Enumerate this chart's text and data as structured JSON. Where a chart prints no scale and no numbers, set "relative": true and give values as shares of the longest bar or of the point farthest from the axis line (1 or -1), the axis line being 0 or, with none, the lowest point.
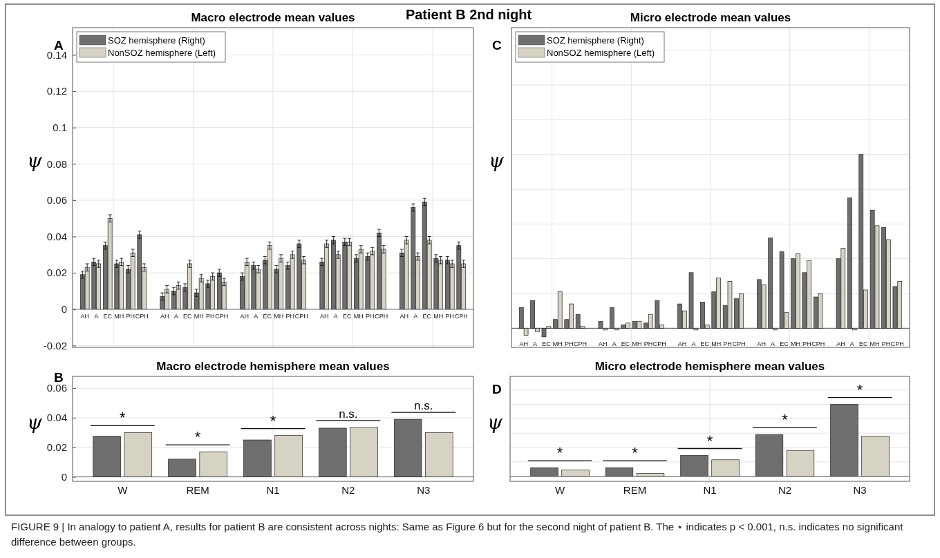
{
  "chart_data": [
    {
      "type": "bar",
      "title": "Macro electrode mean values",
      "subtitle": "Patient B 2nd night",
      "ylabel": "ψ",
      "categories": [
        "AH",
        "A",
        "EC",
        "MH",
        "PH",
        "CPH",
        null,
        "AH",
        "A",
        "EC",
        "MH",
        "PH",
        "CPH",
        null,
        "AH",
        "A",
        "EC",
        "MH",
        "PH",
        "CPH",
        null,
        "AH",
        "A",
        "EC",
        "MH",
        "PH",
        "CPH",
        null,
        "AH",
        "A",
        "EC",
        "MH",
        "PH",
        "CPH"
      ],
      "series": [
        {
          "name": "SOZ hemisphere (Right)",
          "color": "#6e6e6e",
          "values": [
            0.019,
            0.026,
            0.035,
            0.025,
            0.022,
            0.041,
            null,
            0.007,
            0.01,
            0.012,
            0.009,
            0.014,
            0.02,
            null,
            0.018,
            0.024,
            0.027,
            0.022,
            0.024,
            0.036,
            null,
            0.026,
            0.038,
            0.037,
            0.028,
            0.029,
            0.042,
            null,
            0.031,
            0.056,
            0.059,
            0.028,
            0.027,
            0.035
          ],
          "errors": [
            0.002,
            0.002,
            0.002,
            0.002,
            0.002,
            0.002,
            null,
            0.002,
            0.002,
            0.002,
            0.002,
            0.002,
            0.002,
            null,
            0.002,
            0.002,
            0.002,
            0.002,
            0.002,
            0.002,
            null,
            0.002,
            0.002,
            0.002,
            0.002,
            0.002,
            0.002,
            null,
            0.002,
            0.002,
            0.002,
            0.002,
            0.002,
            0.002
          ]
        },
        {
          "name": "NonSOZ hemisphere (Left)",
          "color": "#d6d3c4",
          "values": [
            0.023,
            0.025,
            0.05,
            0.026,
            0.031,
            0.023,
            null,
            0.011,
            0.013,
            0.025,
            0.017,
            0.018,
            0.015,
            null,
            0.026,
            0.022,
            0.035,
            0.028,
            0.03,
            0.027,
            null,
            0.036,
            0.03,
            0.037,
            0.033,
            0.032,
            0.033,
            null,
            0.038,
            0.029,
            0.038,
            0.027,
            0.025,
            0.025
          ],
          "errors": [
            0.002,
            0.002,
            0.002,
            0.002,
            0.002,
            0.002,
            null,
            0.002,
            0.002,
            0.002,
            0.002,
            0.002,
            0.002,
            null,
            0.002,
            0.002,
            0.002,
            0.002,
            0.002,
            0.002,
            null,
            0.002,
            0.002,
            0.002,
            0.002,
            0.002,
            0.002,
            null,
            0.002,
            0.002,
            0.002,
            0.002,
            0.002,
            0.002
          ]
        }
      ],
      "ylim": [
        -0.021,
        0.155
      ],
      "yticks": [
        -0.02,
        0,
        0.02,
        0.04,
        0.06,
        0.08,
        0.1,
        0.12,
        0.14
      ],
      "grid": true,
      "legend": "top left",
      "annotations": [
        "A"
      ]
    },
    {
      "type": "bar",
      "title": "Micro electrode mean values",
      "ylabel": "ψ",
      "relative": true,
      "categories": [
        "AH",
        "A",
        "EC",
        "MH",
        "PH",
        "CPH",
        null,
        "AH",
        "A",
        "EC",
        "MH",
        "PH",
        "CPH",
        null,
        "AH",
        "A",
        "EC",
        "MH",
        "PH",
        "CPH",
        null,
        "AH",
        "A",
        "EC",
        "MH",
        "PH",
        "CPH",
        null,
        "AH",
        "A",
        "EC",
        "MH",
        "PH",
        "CPH"
      ],
      "series": [
        {
          "name": "SOZ hemisphere (Right)",
          "color": "#6e6e6e",
          "values": [
            0.12,
            0.16,
            -0.05,
            0.05,
            0.05,
            0.08,
            null,
            0.04,
            0.12,
            0.02,
            0.04,
            0.03,
            0.16,
            null,
            0.14,
            0.32,
            0.15,
            0.21,
            0.13,
            0.17,
            null,
            0.28,
            0.52,
            0.44,
            0.4,
            0.32,
            0.18,
            null,
            0.4,
            0.75,
            1,
            0.68,
            0.58,
            0.24
          ]
        },
        {
          "name": "NonSOZ hemisphere (Left)",
          "color": "#d6d3c4",
          "values": [
            -0.04,
            -0.02,
            0.01,
            0.21,
            0.14,
            0.01,
            null,
            -0.01,
            -0.01,
            0.03,
            0.04,
            0.08,
            0.02,
            null,
            0.1,
            -0.01,
            0.02,
            0.29,
            0.27,
            0.2,
            null,
            0.25,
            -0.01,
            0.09,
            0.43,
            0.39,
            0.2,
            null,
            0.46,
            -0.01,
            0.22,
            0.59,
            0.51,
            0.27
          ]
        }
      ],
      "grid": true,
      "legend": "top left",
      "annotations": [
        "C"
      ]
    },
    {
      "type": "bar",
      "title": "Macro electrode hemisphere mean values",
      "ylabel": "ψ",
      "categories": [
        "W",
        "REM",
        "N1",
        "N2",
        "N3"
      ],
      "series": [
        {
          "color": "#6e6e6e",
          "values": [
            0.0275,
            0.012,
            0.025,
            0.033,
            0.039
          ]
        },
        {
          "color": "#d6d3c4",
          "values": [
            0.03,
            0.017,
            0.028,
            0.0335,
            0.03
          ]
        }
      ],
      "ylim": [
        -0.003,
        0.068
      ],
      "yticks": [
        0,
        0.02,
        0.04,
        0.06
      ],
      "grid": true,
      "annotations": [
        "B",
        "*",
        "*",
        "*",
        "n.s.",
        "n.s."
      ]
    },
    {
      "type": "bar",
      "title": "Micro electrode hemisphere mean values",
      "ylabel": "ψ",
      "relative": true,
      "categories": [
        "W",
        "REM",
        "N1",
        "N2",
        "N3"
      ],
      "series": [
        {
          "color": "#6e6e6e",
          "values": [
            0.12,
            0.12,
            0.29,
            0.58,
            1
          ]
        },
        {
          "color": "#d6d3c4",
          "values": [
            0.09,
            0.04,
            0.23,
            0.36,
            0.56
          ]
        }
      ],
      "grid": true,
      "annotations": [
        "D",
        "*",
        "*",
        "*",
        "*",
        "*",
        "FIGURE 9 | In analogy to patient A, results for patient B are consistent across nights: Same as Figure 6 but for the second night of patient B. The ⋆ indicates p < 0.001, n.s. indicates no significant difference between groups."
      ]
    }
  ]
}
